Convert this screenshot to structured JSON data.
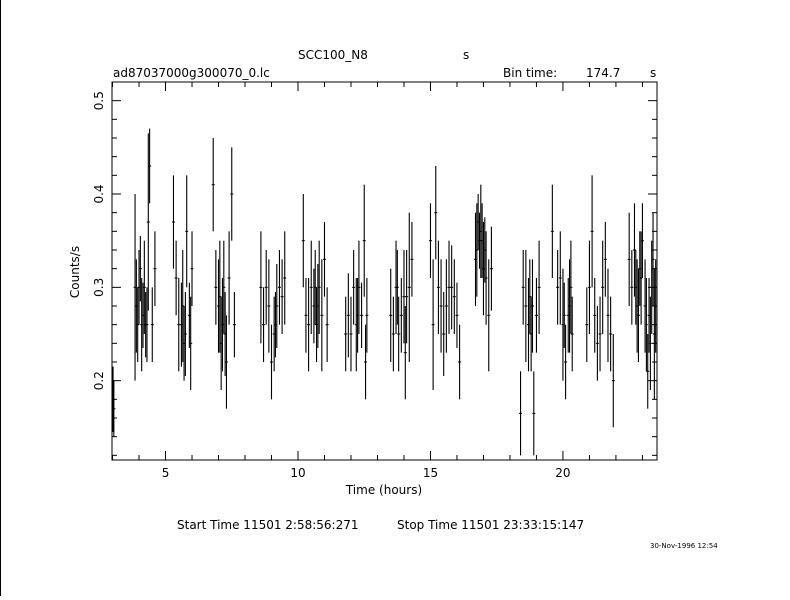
{
  "header": {
    "object_name": "SCC100_N8",
    "unit_top": "s",
    "filename": "ad87037000g300070_0.lc",
    "bin_time_label": "Bin time:",
    "bin_time_value": "174.7",
    "bin_time_unit": "s"
  },
  "footer": {
    "start_label": "Start Time 11501  2:58:56:271",
    "stop_label": "Stop Time 11501 23:33:15:147",
    "timestamp": "30-Nov-1996 12:54"
  },
  "chart_data": {
    "type": "scatter",
    "xlabel": "Time (hours)",
    "ylabel": "Counts/s",
    "xlim": [
      2.98,
      23.55
    ],
    "ylim": [
      0.115,
      0.52
    ],
    "xticks": [
      5,
      10,
      15,
      20
    ],
    "yticks": [
      0.2,
      0.3,
      0.4,
      0.5
    ],
    "ytick_labels": [
      "0.2",
      "0.3",
      "0.4",
      "0.5"
    ],
    "grid": false,
    "error_bars": true,
    "series": [
      {
        "points": [
          {
            "x": 3.02,
            "y": 0.18,
            "e": 0.035
          },
          {
            "x": 3.05,
            "y": 0.17,
            "e": 0.03
          },
          {
            "x": 3.85,
            "y": 0.3,
            "e": 0.1
          },
          {
            "x": 3.9,
            "y": 0.28,
            "e": 0.05
          },
          {
            "x": 3.95,
            "y": 0.26,
            "e": 0.04
          },
          {
            "x": 4.0,
            "y": 0.3,
            "e": 0.04
          },
          {
            "x": 4.05,
            "y": 0.32,
            "e": 0.035
          },
          {
            "x": 4.1,
            "y": 0.26,
            "e": 0.05
          },
          {
            "x": 4.15,
            "y": 0.27,
            "e": 0.035
          },
          {
            "x": 4.2,
            "y": 0.3,
            "e": 0.05
          },
          {
            "x": 4.25,
            "y": 0.26,
            "e": 0.035
          },
          {
            "x": 4.3,
            "y": 0.26,
            "e": 0.04
          },
          {
            "x": 4.35,
            "y": 0.37,
            "e": 0.095
          },
          {
            "x": 4.4,
            "y": 0.43,
            "e": 0.04
          },
          {
            "x": 4.5,
            "y": 0.26,
            "e": 0.04
          },
          {
            "x": 4.6,
            "y": 0.32,
            "e": 0.04
          },
          {
            "x": 5.3,
            "y": 0.37,
            "e": 0.05
          },
          {
            "x": 5.4,
            "y": 0.31,
            "e": 0.04
          },
          {
            "x": 5.5,
            "y": 0.26,
            "e": 0.05
          },
          {
            "x": 5.6,
            "y": 0.26,
            "e": 0.045
          },
          {
            "x": 5.65,
            "y": 0.28,
            "e": 0.06
          },
          {
            "x": 5.7,
            "y": 0.24,
            "e": 0.04
          },
          {
            "x": 5.75,
            "y": 0.25,
            "e": 0.045
          },
          {
            "x": 5.8,
            "y": 0.36,
            "e": 0.06
          },
          {
            "x": 5.9,
            "y": 0.27,
            "e": 0.035
          },
          {
            "x": 5.95,
            "y": 0.24,
            "e": 0.05
          },
          {
            "x": 6.0,
            "y": 0.32,
            "e": 0.04
          },
          {
            "x": 6.8,
            "y": 0.41,
            "e": 0.05
          },
          {
            "x": 6.9,
            "y": 0.3,
            "e": 0.04
          },
          {
            "x": 7.0,
            "y": 0.28,
            "e": 0.05
          },
          {
            "x": 7.05,
            "y": 0.29,
            "e": 0.06
          },
          {
            "x": 7.1,
            "y": 0.24,
            "e": 0.05
          },
          {
            "x": 7.15,
            "y": 0.26,
            "e": 0.05
          },
          {
            "x": 7.2,
            "y": 0.3,
            "e": 0.05
          },
          {
            "x": 7.25,
            "y": 0.25,
            "e": 0.045
          },
          {
            "x": 7.3,
            "y": 0.22,
            "e": 0.05
          },
          {
            "x": 7.4,
            "y": 0.31,
            "e": 0.05
          },
          {
            "x": 7.5,
            "y": 0.4,
            "e": 0.05
          },
          {
            "x": 7.6,
            "y": 0.26,
            "e": 0.035
          },
          {
            "x": 8.6,
            "y": 0.3,
            "e": 0.06
          },
          {
            "x": 8.7,
            "y": 0.26,
            "e": 0.04
          },
          {
            "x": 8.8,
            "y": 0.3,
            "e": 0.04
          },
          {
            "x": 8.9,
            "y": 0.28,
            "e": 0.05
          },
          {
            "x": 9.0,
            "y": 0.22,
            "e": 0.04
          },
          {
            "x": 9.1,
            "y": 0.25,
            "e": 0.04
          },
          {
            "x": 9.15,
            "y": 0.26,
            "e": 0.035
          },
          {
            "x": 9.2,
            "y": 0.28,
            "e": 0.045
          },
          {
            "x": 9.3,
            "y": 0.3,
            "e": 0.04
          },
          {
            "x": 9.4,
            "y": 0.29,
            "e": 0.04
          },
          {
            "x": 9.5,
            "y": 0.31,
            "e": 0.05
          },
          {
            "x": 10.2,
            "y": 0.35,
            "e": 0.05
          },
          {
            "x": 10.3,
            "y": 0.27,
            "e": 0.04
          },
          {
            "x": 10.4,
            "y": 0.26,
            "e": 0.05
          },
          {
            "x": 10.5,
            "y": 0.3,
            "e": 0.05
          },
          {
            "x": 10.6,
            "y": 0.28,
            "e": 0.04
          },
          {
            "x": 10.65,
            "y": 0.3,
            "e": 0.04
          },
          {
            "x": 10.7,
            "y": 0.26,
            "e": 0.04
          },
          {
            "x": 10.75,
            "y": 0.28,
            "e": 0.045
          },
          {
            "x": 10.8,
            "y": 0.3,
            "e": 0.05
          },
          {
            "x": 10.9,
            "y": 0.27,
            "e": 0.06
          },
          {
            "x": 11.0,
            "y": 0.33,
            "e": 0.04
          },
          {
            "x": 11.1,
            "y": 0.26,
            "e": 0.04
          },
          {
            "x": 11.8,
            "y": 0.25,
            "e": 0.04
          },
          {
            "x": 11.9,
            "y": 0.27,
            "e": 0.045
          },
          {
            "x": 12.0,
            "y": 0.25,
            "e": 0.04
          },
          {
            "x": 12.1,
            "y": 0.3,
            "e": 0.04
          },
          {
            "x": 12.2,
            "y": 0.26,
            "e": 0.05
          },
          {
            "x": 12.25,
            "y": 0.27,
            "e": 0.04
          },
          {
            "x": 12.3,
            "y": 0.3,
            "e": 0.05
          },
          {
            "x": 12.4,
            "y": 0.27,
            "e": 0.035
          },
          {
            "x": 12.5,
            "y": 0.35,
            "e": 0.06
          },
          {
            "x": 12.55,
            "y": 0.22,
            "e": 0.04
          },
          {
            "x": 12.6,
            "y": 0.27,
            "e": 0.04
          },
          {
            "x": 13.5,
            "y": 0.27,
            "e": 0.05
          },
          {
            "x": 13.6,
            "y": 0.25,
            "e": 0.04
          },
          {
            "x": 13.7,
            "y": 0.3,
            "e": 0.05
          },
          {
            "x": 13.75,
            "y": 0.3,
            "e": 0.04
          },
          {
            "x": 13.8,
            "y": 0.25,
            "e": 0.04
          },
          {
            "x": 13.9,
            "y": 0.27,
            "e": 0.04
          },
          {
            "x": 14.0,
            "y": 0.29,
            "e": 0.05
          },
          {
            "x": 14.05,
            "y": 0.23,
            "e": 0.05
          },
          {
            "x": 14.1,
            "y": 0.29,
            "e": 0.05
          },
          {
            "x": 14.2,
            "y": 0.3,
            "e": 0.08
          },
          {
            "x": 14.3,
            "y": 0.33,
            "e": 0.04
          },
          {
            "x": 15.0,
            "y": 0.35,
            "e": 0.04
          },
          {
            "x": 15.1,
            "y": 0.26,
            "e": 0.07
          },
          {
            "x": 15.2,
            "y": 0.38,
            "e": 0.05
          },
          {
            "x": 15.3,
            "y": 0.3,
            "e": 0.05
          },
          {
            "x": 15.4,
            "y": 0.28,
            "e": 0.05
          },
          {
            "x": 15.5,
            "y": 0.25,
            "e": 0.045
          },
          {
            "x": 15.6,
            "y": 0.28,
            "e": 0.05
          },
          {
            "x": 15.7,
            "y": 0.3,
            "e": 0.05
          },
          {
            "x": 15.8,
            "y": 0.3,
            "e": 0.045
          },
          {
            "x": 15.9,
            "y": 0.29,
            "e": 0.04
          },
          {
            "x": 16.0,
            "y": 0.27,
            "e": 0.035
          },
          {
            "x": 16.1,
            "y": 0.22,
            "e": 0.04
          },
          {
            "x": 16.7,
            "y": 0.33,
            "e": 0.05
          },
          {
            "x": 16.75,
            "y": 0.34,
            "e": 0.05
          },
          {
            "x": 16.8,
            "y": 0.37,
            "e": 0.03
          },
          {
            "x": 16.85,
            "y": 0.35,
            "e": 0.03
          },
          {
            "x": 16.9,
            "y": 0.36,
            "e": 0.05
          },
          {
            "x": 16.95,
            "y": 0.35,
            "e": 0.04
          },
          {
            "x": 17.0,
            "y": 0.32,
            "e": 0.05
          },
          {
            "x": 17.05,
            "y": 0.34,
            "e": 0.035
          },
          {
            "x": 17.1,
            "y": 0.31,
            "e": 0.05
          },
          {
            "x": 17.2,
            "y": 0.27,
            "e": 0.06
          },
          {
            "x": 17.3,
            "y": 0.32,
            "e": 0.045
          },
          {
            "x": 18.4,
            "y": 0.165,
            "e": 0.045
          },
          {
            "x": 18.5,
            "y": 0.3,
            "e": 0.04
          },
          {
            "x": 18.6,
            "y": 0.28,
            "e": 0.06
          },
          {
            "x": 18.7,
            "y": 0.26,
            "e": 0.05
          },
          {
            "x": 18.75,
            "y": 0.29,
            "e": 0.04
          },
          {
            "x": 18.8,
            "y": 0.25,
            "e": 0.04
          },
          {
            "x": 18.85,
            "y": 0.28,
            "e": 0.05
          },
          {
            "x": 18.9,
            "y": 0.165,
            "e": 0.045
          },
          {
            "x": 19.0,
            "y": 0.27,
            "e": 0.04
          },
          {
            "x": 19.1,
            "y": 0.3,
            "e": 0.05
          },
          {
            "x": 19.6,
            "y": 0.36,
            "e": 0.05
          },
          {
            "x": 19.8,
            "y": 0.3,
            "e": 0.04
          },
          {
            "x": 19.9,
            "y": 0.31,
            "e": 0.05
          },
          {
            "x": 20.0,
            "y": 0.26,
            "e": 0.06
          },
          {
            "x": 20.05,
            "y": 0.27,
            "e": 0.035
          },
          {
            "x": 20.1,
            "y": 0.22,
            "e": 0.04
          },
          {
            "x": 20.2,
            "y": 0.27,
            "e": 0.04
          },
          {
            "x": 20.25,
            "y": 0.28,
            "e": 0.05
          },
          {
            "x": 20.3,
            "y": 0.3,
            "e": 0.05
          },
          {
            "x": 20.35,
            "y": 0.25,
            "e": 0.04
          },
          {
            "x": 20.9,
            "y": 0.26,
            "e": 0.04
          },
          {
            "x": 21.0,
            "y": 0.3,
            "e": 0.05
          },
          {
            "x": 21.1,
            "y": 0.36,
            "e": 0.06
          },
          {
            "x": 21.2,
            "y": 0.27,
            "e": 0.04
          },
          {
            "x": 21.3,
            "y": 0.24,
            "e": 0.04
          },
          {
            "x": 21.4,
            "y": 0.25,
            "e": 0.04
          },
          {
            "x": 21.5,
            "y": 0.3,
            "e": 0.05
          },
          {
            "x": 21.6,
            "y": 0.33,
            "e": 0.04
          },
          {
            "x": 21.7,
            "y": 0.27,
            "e": 0.05
          },
          {
            "x": 21.8,
            "y": 0.25,
            "e": 0.04
          },
          {
            "x": 21.9,
            "y": 0.2,
            "e": 0.05
          },
          {
            "x": 22.5,
            "y": 0.33,
            "e": 0.05
          },
          {
            "x": 22.6,
            "y": 0.3,
            "e": 0.04
          },
          {
            "x": 22.7,
            "y": 0.34,
            "e": 0.05
          },
          {
            "x": 22.75,
            "y": 0.3,
            "e": 0.04
          },
          {
            "x": 22.8,
            "y": 0.28,
            "e": 0.05
          },
          {
            "x": 22.85,
            "y": 0.27,
            "e": 0.05
          },
          {
            "x": 22.9,
            "y": 0.32,
            "e": 0.04
          },
          {
            "x": 22.95,
            "y": 0.31,
            "e": 0.05
          },
          {
            "x": 23.0,
            "y": 0.35,
            "e": 0.04
          },
          {
            "x": 23.1,
            "y": 0.28,
            "e": 0.05
          },
          {
            "x": 23.15,
            "y": 0.26,
            "e": 0.05
          },
          {
            "x": 23.2,
            "y": 0.21,
            "e": 0.04
          },
          {
            "x": 23.25,
            "y": 0.27,
            "e": 0.04
          },
          {
            "x": 23.3,
            "y": 0.24,
            "e": 0.05
          },
          {
            "x": 23.35,
            "y": 0.3,
            "e": 0.05
          },
          {
            "x": 23.4,
            "y": 0.33,
            "e": 0.05
          },
          {
            "x": 23.45,
            "y": 0.25,
            "e": 0.07
          },
          {
            "x": 23.5,
            "y": 0.28,
            "e": 0.05
          }
        ]
      }
    ]
  }
}
